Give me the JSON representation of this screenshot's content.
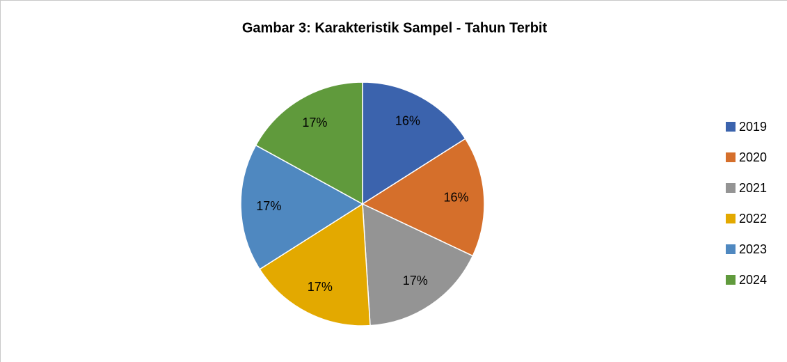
{
  "chart_data": {
    "type": "pie",
    "title": "Gambar 3: Karakteristik Sampel - Tahun Terbit",
    "categories": [
      "2019",
      "2020",
      "2021",
      "2022",
      "2023",
      "2024"
    ],
    "values": [
      16,
      16,
      17,
      17,
      17,
      17
    ],
    "value_labels": [
      "16%",
      "16%",
      "17%",
      "17%",
      "17%",
      "17%"
    ],
    "colors": [
      "#3b63ad",
      "#d56f2b",
      "#949494",
      "#e3a900",
      "#4f88c0",
      "#609a3c"
    ],
    "legend": "right"
  }
}
